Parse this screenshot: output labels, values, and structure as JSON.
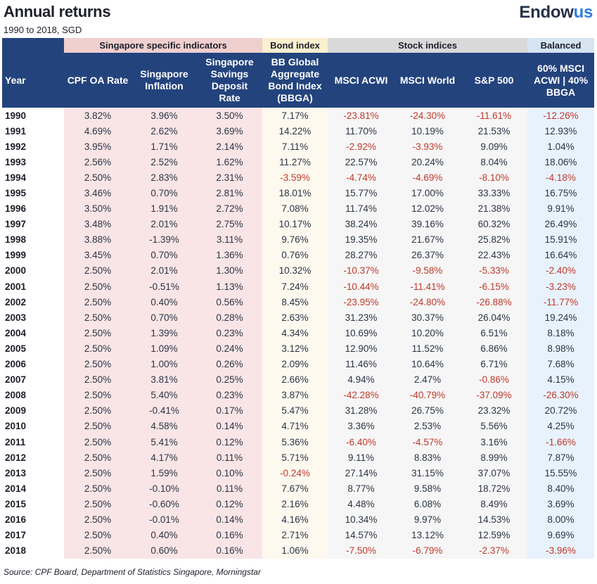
{
  "header": {
    "title": "Annual returns",
    "subtitle": "1990 to 2018, SGD",
    "logo_main": "Endow",
    "logo_accent": "us",
    "accent_color": "#2f7de1"
  },
  "groups": {
    "singapore": "Singapore specific indicators",
    "bond": "Bond index",
    "stock": "Stock indices",
    "balanced": "Balanced"
  },
  "columns": {
    "year": "Year",
    "cpf": "CPF OA Rate",
    "inflation": "Singapore Inflation",
    "savings": "Singapore Savings Deposit Rate",
    "bbga": "BB Global Aggregate Bond Index (BBGA)",
    "acwi": "MSCI ACWI",
    "world": "MSCI World",
    "sp500": "S&P 500",
    "balanced": "60% MSCI ACWI | 40% BBGA"
  },
  "colors": {
    "header_navy": "#23437d",
    "negative": "#c0392b",
    "singapore_group": "#f0cfcf",
    "bond_group": "#fbf0cf",
    "stock_group": "#d9d9d9",
    "balanced_group": "#d6e4f2"
  },
  "rows": [
    [
      "1990",
      "3.82%",
      "3.96%",
      "3.50%",
      "7.17%",
      "-23.81%",
      "-24.30%",
      "-11.61%",
      "-12.26%"
    ],
    [
      "1991",
      "4.69%",
      "2.62%",
      "3.69%",
      "14.22%",
      "11.70%",
      "10.19%",
      "21.53%",
      "12.93%"
    ],
    [
      "1992",
      "3.95%",
      "1.71%",
      "2.14%",
      "7.11%",
      "-2.92%",
      "-3.93%",
      "9.09%",
      "1.04%"
    ],
    [
      "1993",
      "2.56%",
      "2.52%",
      "1.62%",
      "11.27%",
      "22.57%",
      "20.24%",
      "8.04%",
      "18.06%"
    ],
    [
      "1994",
      "2.50%",
      "2.83%",
      "2.31%",
      "-3.59%",
      "-4.74%",
      "-4.69%",
      "-8.10%",
      "-4.18%"
    ],
    [
      "1995",
      "3.46%",
      "0.70%",
      "2.81%",
      "18.01%",
      "15.77%",
      "17.00%",
      "33.33%",
      "16.75%"
    ],
    [
      "1996",
      "3.50%",
      "1.91%",
      "2.72%",
      "7.08%",
      "11.74%",
      "12.02%",
      "21.38%",
      "9.91%"
    ],
    [
      "1997",
      "3.48%",
      "2.01%",
      "2.75%",
      "10.17%",
      "38.24%",
      "39.16%",
      "60.32%",
      "26.49%"
    ],
    [
      "1998",
      "3.88%",
      "-1.39%",
      "3.11%",
      "9.76%",
      "19.35%",
      "21.67%",
      "25.82%",
      "15.91%"
    ],
    [
      "1999",
      "3.45%",
      "0.70%",
      "1.36%",
      "0.76%",
      "28.27%",
      "26.37%",
      "22.43%",
      "16.64%"
    ],
    [
      "2000",
      "2.50%",
      "2.01%",
      "1.30%",
      "10.32%",
      "-10.37%",
      "-9.58%",
      "-5.33%",
      "-2.40%"
    ],
    [
      "2001",
      "2.50%",
      "-0.51%",
      "1.13%",
      "7.24%",
      "-10.44%",
      "-11.41%",
      "-6.15%",
      "-3.23%"
    ],
    [
      "2002",
      "2.50%",
      "0.40%",
      "0.56%",
      "8.45%",
      "-23.95%",
      "-24.80%",
      "-26.88%",
      "-11.77%"
    ],
    [
      "2003",
      "2.50%",
      "0.70%",
      "0.28%",
      "2.63%",
      "31.23%",
      "30.37%",
      "26.04%",
      "19.24%"
    ],
    [
      "2004",
      "2.50%",
      "1.39%",
      "0.23%",
      "4.34%",
      "10.69%",
      "10.20%",
      "6.51%",
      "8.18%"
    ],
    [
      "2005",
      "2.50%",
      "1.09%",
      "0.24%",
      "3.12%",
      "12.90%",
      "11.52%",
      "6.86%",
      "8.98%"
    ],
    [
      "2006",
      "2.50%",
      "1.00%",
      "0.26%",
      "2.09%",
      "11.46%",
      "10.64%",
      "6.71%",
      "7.68%"
    ],
    [
      "2007",
      "2.50%",
      "3.81%",
      "0.25%",
      "2.66%",
      "4.94%",
      "2.47%",
      "-0.86%",
      "4.15%"
    ],
    [
      "2008",
      "2.50%",
      "5.40%",
      "0.23%",
      "3.87%",
      "-42.28%",
      "-40.79%",
      "-37.09%",
      "-26.30%"
    ],
    [
      "2009",
      "2.50%",
      "-0.41%",
      "0.17%",
      "5.47%",
      "31.28%",
      "26.75%",
      "23.32%",
      "20.72%"
    ],
    [
      "2010",
      "2.50%",
      "4.58%",
      "0.14%",
      "4.71%",
      "3.36%",
      "2.53%",
      "5.56%",
      "4.25%"
    ],
    [
      "2011",
      "2.50%",
      "5.41%",
      "0.12%",
      "5.36%",
      "-6.40%",
      "-4.57%",
      "3.16%",
      "-1.66%"
    ],
    [
      "2012",
      "2.50%",
      "4.17%",
      "0.11%",
      "5.71%",
      "9.11%",
      "8.83%",
      "8.99%",
      "7.87%"
    ],
    [
      "2013",
      "2.50%",
      "1.59%",
      "0.10%",
      "-0.24%",
      "27.14%",
      "31.15%",
      "37.07%",
      "15.55%"
    ],
    [
      "2014",
      "2.50%",
      "-0.10%",
      "0.11%",
      "7.67%",
      "8.77%",
      "9.58%",
      "18.72%",
      "8.40%"
    ],
    [
      "2015",
      "2.50%",
      "-0.60%",
      "0.12%",
      "2.16%",
      "4.48%",
      "6.08%",
      "8.49%",
      "3.69%"
    ],
    [
      "2016",
      "2.50%",
      "-0.01%",
      "0.14%",
      "4.16%",
      "10.34%",
      "9.97%",
      "14.53%",
      "8.00%"
    ],
    [
      "2017",
      "2.50%",
      "0.40%",
      "0.16%",
      "2.71%",
      "14.57%",
      "13.12%",
      "12.59%",
      "9.69%"
    ],
    [
      "2018",
      "2.50%",
      "0.60%",
      "0.16%",
      "1.06%",
      "-7.50%",
      "-6.79%",
      "-2.37%",
      "-3.96%"
    ]
  ],
  "red_columns": [
    "bbga",
    "acwi",
    "world",
    "sp500",
    "balanced"
  ],
  "footer": {
    "source": "Source: CPF Board, Department of Statistics Singapore, Morningstar"
  }
}
